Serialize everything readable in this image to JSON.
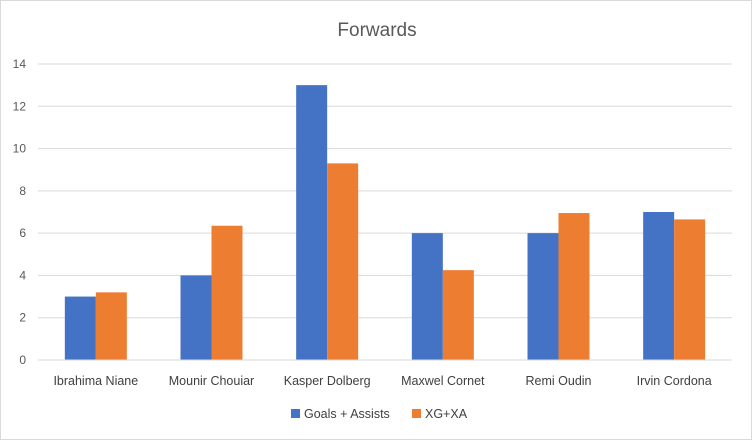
{
  "chart_data": {
    "type": "bar",
    "title": "Forwards",
    "xlabel": "",
    "ylabel": "",
    "categories": [
      "Ibrahima Niane",
      "Mounir Chouiar",
      "Kasper Dolberg",
      "Maxwel Cornet",
      "Remi Oudin",
      "Irvin Cordona"
    ],
    "series": [
      {
        "name": "Goals + Assists",
        "color": "#4472C4",
        "values": [
          3,
          4,
          13,
          6,
          6,
          7
        ]
      },
      {
        "name": "XG+XA",
        "color": "#ED7D31",
        "values": [
          3.2,
          6.35,
          9.3,
          4.25,
          6.95,
          6.65
        ]
      }
    ],
    "ylim": [
      0,
      14
    ],
    "yticks": [
      0,
      2,
      4,
      6,
      8,
      10,
      12,
      14
    ],
    "grid": true,
    "legend": "bottom"
  }
}
